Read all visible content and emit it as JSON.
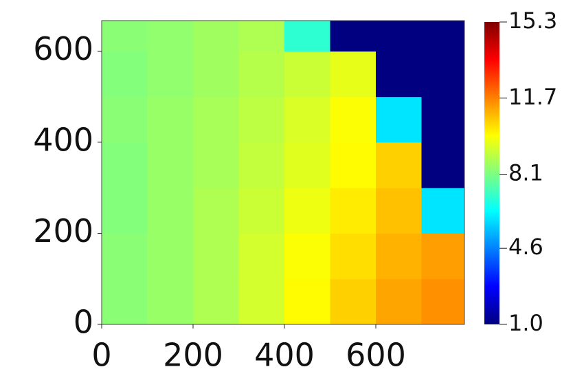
{
  "chart_data": {
    "type": "heatmap",
    "xbins": [
      0,
      100,
      200,
      300,
      400,
      500,
      600,
      700,
      794
    ],
    "ybins": [
      0,
      100,
      200,
      300,
      400,
      500,
      600,
      667
    ],
    "z": [
      [
        8.3,
        8.5,
        8.8,
        9.3,
        10,
        10.6,
        11.2,
        11.5
      ],
      [
        8.3,
        8.5,
        8.8,
        9.3,
        9.9,
        10.4,
        11,
        11.3
      ],
      [
        8.2,
        8.5,
        8.8,
        9.2,
        9.7,
        10.2,
        10.8,
        6
      ],
      [
        8.2,
        8.5,
        8.7,
        9.1,
        9.5,
        10,
        10.6,
        1
      ],
      [
        8.3,
        8.5,
        8.7,
        9,
        9.4,
        9.9,
        6,
        1
      ],
      [
        8.2,
        8.4,
        8.6,
        8.9,
        9.2,
        9.6,
        1,
        1
      ],
      [
        8.3,
        8.4,
        8.6,
        8.8,
        7,
        1,
        1,
        1
      ]
    ],
    "xlim": [
      0,
      794
    ],
    "ylim": [
      0,
      667
    ],
    "xticks": [
      0,
      200,
      400,
      600
    ],
    "yticks": [
      0,
      200,
      400,
      600
    ],
    "zlim": [
      1,
      15.3
    ],
    "zticks": [
      {
        "value": 1,
        "label": "1.0"
      },
      4.6,
      8.1,
      11.7,
      15.3
    ],
    "colormap": "jet"
  }
}
